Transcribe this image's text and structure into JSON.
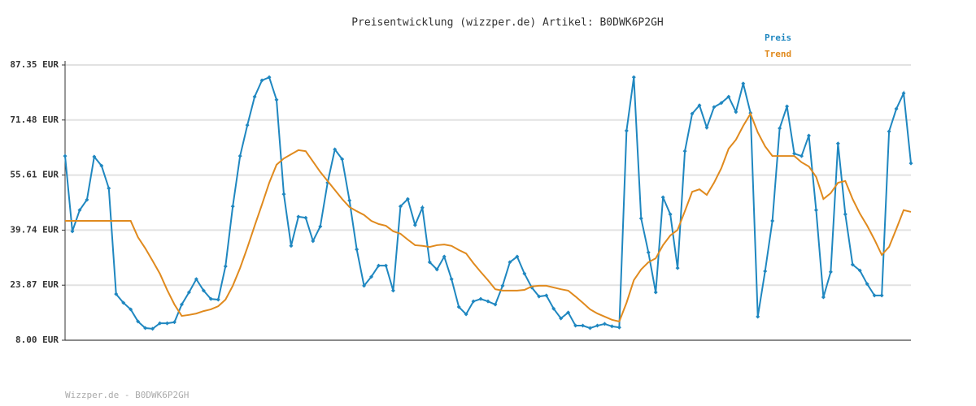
{
  "chart_data": {
    "type": "line",
    "title": "Preisentwicklung (wizzper.de) Artikel: B0DWK6P2GH",
    "footer": "Wizzper.de - B0DWK6P2GH",
    "ylim": [
      8,
      87.35
    ],
    "yticks": [
      {
        "value": 8,
        "label": "8.00 EUR"
      },
      {
        "value": 23.87,
        "label": "23.87 EUR"
      },
      {
        "value": 39.74,
        "label": "39.74 EUR"
      },
      {
        "value": 55.61,
        "label": "55.61 EUR"
      },
      {
        "value": 71.48,
        "label": "71.48 EUR"
      },
      {
        "value": 87.35,
        "label": "87.35 EUR"
      }
    ],
    "grid": true,
    "legend": "top-right",
    "series": [
      {
        "name": "Preis",
        "color": "#1f87c0",
        "markers": true,
        "values": [
          61.1,
          39.4,
          45.5,
          48.5,
          60.9,
          58.3,
          51.8,
          21.3,
          18.8,
          16.9,
          13.4,
          11.5,
          11.3,
          12.9,
          12.9,
          13.2,
          18.3,
          21.8,
          25.6,
          22.3,
          19.9,
          19.7,
          29.3,
          46.6,
          61.1,
          70.0,
          78.2,
          82.9,
          83.8,
          77.3,
          50.1,
          35.2,
          43.6,
          43.3,
          36.6,
          40.8,
          53.4,
          63.0,
          60.2,
          48.3,
          34.2,
          23.7,
          26.3,
          29.5,
          29.5,
          22.3,
          46.6,
          48.7,
          41.2,
          46.2,
          30.5,
          28.4,
          32.1,
          25.6,
          17.6,
          15.5,
          19.2,
          19.9,
          19.2,
          18.3,
          23.7,
          30.5,
          32.1,
          27.2,
          23.2,
          20.6,
          20.9,
          17.1,
          14.3,
          16.0,
          12.2,
          12.2,
          11.5,
          12.2,
          12.7,
          12.0,
          11.7,
          68.4,
          83.8,
          43.1,
          33.3,
          21.8,
          49.2,
          44.3,
          28.8,
          62.5,
          73.3,
          75.7,
          69.3,
          75.2,
          76.4,
          78.2,
          73.8,
          82.0,
          73.5,
          14.8,
          27.9,
          42.4,
          69.1,
          75.4,
          61.8,
          61.1,
          67.0,
          45.5,
          20.4,
          27.7,
          64.7,
          44.3,
          29.8,
          28.1,
          24.2,
          20.9,
          20.9,
          68.2,
          74.7,
          79.2,
          59.0
        ]
      },
      {
        "name": "Trend",
        "color": "#e08a1e",
        "markers": false,
        "values": [
          42.4,
          42.4,
          42.4,
          42.4,
          42.4,
          42.4,
          42.4,
          42.4,
          42.4,
          42.4,
          37.7,
          34.5,
          30.9,
          27.2,
          22.5,
          18.3,
          15.0,
          15.3,
          15.7,
          16.4,
          16.9,
          17.8,
          19.7,
          23.7,
          28.8,
          34.7,
          41.0,
          47.1,
          53.4,
          58.6,
          60.4,
          61.6,
          62.8,
          62.5,
          59.5,
          56.5,
          53.9,
          51.3,
          48.7,
          46.4,
          45.2,
          44.1,
          42.4,
          41.5,
          41.0,
          39.4,
          38.7,
          37.0,
          35.4,
          35.2,
          34.9,
          35.4,
          35.6,
          35.2,
          34.0,
          33.0,
          30.2,
          27.7,
          25.3,
          22.7,
          22.3,
          22.3,
          22.3,
          22.5,
          23.5,
          23.7,
          23.7,
          23.2,
          22.7,
          22.3,
          20.6,
          18.8,
          16.9,
          15.7,
          14.8,
          13.9,
          13.4,
          18.8,
          25.3,
          28.4,
          30.5,
          31.6,
          35.4,
          38.2,
          39.8,
          45.2,
          50.8,
          51.5,
          49.9,
          53.4,
          57.6,
          63.2,
          65.8,
          69.8,
          73.3,
          67.9,
          63.9,
          61.1,
          61.1,
          61.1,
          61.1,
          59.3,
          58.1,
          55.1,
          48.7,
          50.4,
          53.4,
          53.9,
          48.7,
          44.5,
          41.0,
          37.0,
          32.6,
          34.9,
          40.1,
          45.5,
          45.0
        ]
      }
    ]
  }
}
